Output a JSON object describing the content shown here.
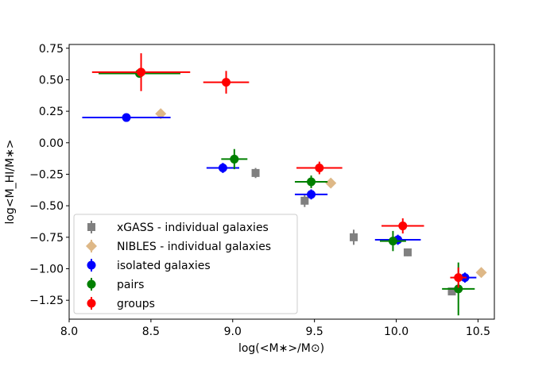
{
  "chart_data": {
    "type": "scatter",
    "xlabel": "log(<M∗>/M⊙)",
    "ylabel": "log<M_HI/M∗>",
    "xlim": [
      8.0,
      10.6
    ],
    "ylim": [
      -1.4,
      0.78
    ],
    "xticks": [
      8.0,
      8.5,
      9.0,
      9.5,
      10.0,
      10.5
    ],
    "yticks": [
      -1.25,
      -1.0,
      -0.75,
      -0.5,
      -0.25,
      0.0,
      0.25,
      0.5,
      0.75
    ],
    "grid": false,
    "legend_position": "lower-left",
    "series": [
      {
        "name": "xGASS - individual galaxies",
        "color": "#808080",
        "marker": "square",
        "points": [
          {
            "x": 9.14,
            "y": -0.24,
            "yerr": 0.04,
            "xerr": 0
          },
          {
            "x": 9.44,
            "y": -0.46,
            "yerr": 0.05,
            "xerr": 0
          },
          {
            "x": 9.74,
            "y": -0.75,
            "yerr": 0.06,
            "xerr": 0
          },
          {
            "x": 10.07,
            "y": -0.87,
            "yerr": 0.03,
            "xerr": 0
          },
          {
            "x": 10.34,
            "y": -1.18,
            "yerr": 0.02,
            "xerr": 0
          }
        ]
      },
      {
        "name": "NIBLES - individual galaxies",
        "color": "#deb887",
        "marker": "diamond",
        "points": [
          {
            "x": 8.56,
            "y": 0.23,
            "yerr": 0,
            "xerr": 0
          },
          {
            "x": 9.6,
            "y": -0.32,
            "yerr": 0,
            "xerr": 0
          },
          {
            "x": 10.52,
            "y": -1.03,
            "yerr": 0,
            "xerr": 0
          }
        ]
      },
      {
        "name": "isolated galaxies",
        "color": "#0000ff",
        "marker": "circle",
        "points": [
          {
            "x": 8.35,
            "y": 0.2,
            "yerr": 0,
            "xerr": 0.27
          },
          {
            "x": 8.94,
            "y": -0.2,
            "yerr": 0.04,
            "xerr": 0.1
          },
          {
            "x": 9.48,
            "y": -0.41,
            "yerr": 0.04,
            "xerr": 0.1
          },
          {
            "x": 10.01,
            "y": -0.77,
            "yerr": 0.04,
            "xerr": 0.14
          },
          {
            "x": 10.42,
            "y": -1.07,
            "yerr": 0.04,
            "xerr": 0.07
          }
        ]
      },
      {
        "name": "pairs",
        "color": "#008000",
        "marker": "circle",
        "points": [
          {
            "x": 8.43,
            "y": 0.55,
            "yerr": 0,
            "xerr": 0.25
          },
          {
            "x": 9.01,
            "y": -0.13,
            "yerr": 0.08,
            "xerr": 0.08
          },
          {
            "x": 9.48,
            "y": -0.31,
            "yerr": 0.05,
            "xerr": 0.1
          },
          {
            "x": 9.98,
            "y": -0.78,
            "yerr": 0.08,
            "xerr": 0.08
          },
          {
            "x": 10.38,
            "y": -1.16,
            "yerr": 0.21,
            "xerr": 0.1
          }
        ]
      },
      {
        "name": "groups",
        "color": "#ff0000",
        "marker": "circle",
        "points": [
          {
            "x": 8.44,
            "y": 0.56,
            "yerr": 0.15,
            "xerr": 0.3
          },
          {
            "x": 8.96,
            "y": 0.48,
            "yerr": 0.09,
            "xerr": 0.14
          },
          {
            "x": 9.53,
            "y": -0.2,
            "yerr": 0.05,
            "xerr": 0.14
          },
          {
            "x": 10.04,
            "y": -0.66,
            "yerr": 0.06,
            "xerr": 0.13
          },
          {
            "x": 10.38,
            "y": -1.07,
            "yerr": 0.08,
            "xerr": 0.05
          }
        ]
      }
    ]
  }
}
